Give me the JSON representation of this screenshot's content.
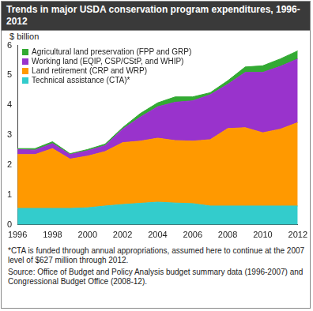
{
  "chart_data": {
    "type": "area",
    "title": "Trends in major USDA conservation program expenditures, 1996-2012",
    "y_label": "$ billion",
    "footnotes": [
      "*CTA is funded through annual appropriations, assumed here to continue at the 2007 level of $627 million through 2012.",
      "Source: Office of Budget and Policy Analysis budget summary data (1996-2007) and Congressional Budget Office (2008-12)."
    ],
    "x": [
      1996,
      1997,
      1998,
      1999,
      2000,
      2001,
      2002,
      2003,
      2004,
      2005,
      2006,
      2007,
      2008,
      2009,
      2010,
      2011,
      2012
    ],
    "series": [
      {
        "name": "Technical assistance (CTA)*",
        "color": "#33cccc",
        "values": [
          0.55,
          0.55,
          0.55,
          0.55,
          0.57,
          0.63,
          0.68,
          0.72,
          0.76,
          0.73,
          0.71,
          0.63,
          0.63,
          0.63,
          0.63,
          0.63,
          0.63
        ]
      },
      {
        "name": "Land retirement (CRP and WRP)",
        "color": "#ff9900",
        "values": [
          1.8,
          1.8,
          2.0,
          1.65,
          1.73,
          1.82,
          2.07,
          2.08,
          2.14,
          2.09,
          2.09,
          2.22,
          2.59,
          2.62,
          2.45,
          2.57,
          2.79
        ]
      },
      {
        "name": "Working land (EQIP, CSP/CStP, and WHIP)",
        "color": "#9933cc",
        "values": [
          0.17,
          0.15,
          0.17,
          0.15,
          0.18,
          0.2,
          0.45,
          0.8,
          1.05,
          1.28,
          1.35,
          1.5,
          1.48,
          1.85,
          2.02,
          2.1,
          2.13
        ]
      },
      {
        "name": "Agricultural land preservation (FPP and GRP)",
        "color": "#33aa33",
        "values": [
          0.03,
          0.05,
          0.06,
          0.03,
          0.04,
          0.05,
          0.05,
          0.12,
          0.13,
          0.18,
          0.13,
          0.07,
          0.12,
          0.18,
          0.22,
          0.25,
          0.27
        ]
      }
    ],
    "xlim": [
      1996,
      2012
    ],
    "xticks": [
      1996,
      1998,
      2000,
      2002,
      2004,
      2006,
      2008,
      2010,
      2012
    ],
    "ylim": [
      0,
      6
    ],
    "yticks": [
      0,
      1,
      2,
      3,
      4,
      5,
      6
    ],
    "stacked": true,
    "grid": false,
    "legend": "upper left"
  }
}
